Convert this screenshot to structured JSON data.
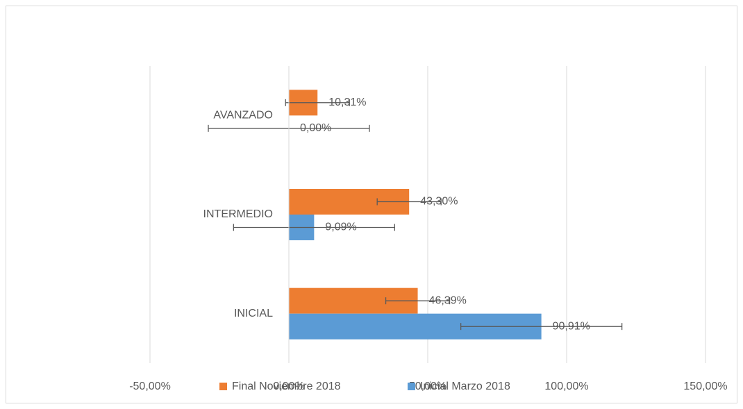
{
  "chart_data": {
    "type": "bar",
    "orientation": "horizontal",
    "categories": [
      "INICIAL",
      "INTERMEDIO",
      "AVANZADO"
    ],
    "series": [
      {
        "name": "Final Noviembre 2018",
        "color": "#ed7d31",
        "values": [
          46.39,
          43.3,
          10.31
        ],
        "value_labels": [
          "46,39%",
          "43,30%",
          "10,31%"
        ],
        "errors": [
          11.5,
          11.5,
          11.5
        ]
      },
      {
        "name": "Inicial Marzo 2018",
        "color": "#5b9bd5",
        "values": [
          90.91,
          9.09,
          0.0
        ],
        "value_labels": [
          "90,91%",
          "9,09%",
          "0,00%"
        ],
        "errors": [
          29,
          29,
          29
        ]
      }
    ],
    "xlim": [
      -50,
      150
    ],
    "xticks": [
      {
        "value": -50,
        "label": "-50,00%"
      },
      {
        "value": 0,
        "label": "0,00%"
      },
      {
        "value": 50,
        "label": "50,00%"
      },
      {
        "value": 100,
        "label": "100,00%"
      },
      {
        "value": 150,
        "label": "150,00%"
      }
    ],
    "grid": true,
    "legend": "bottom"
  }
}
